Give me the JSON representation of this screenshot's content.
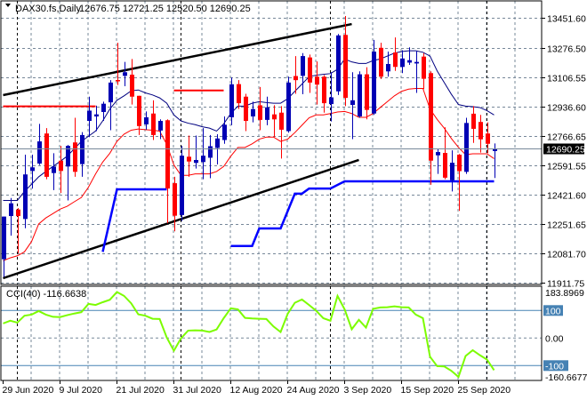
{
  "header": {
    "symbol": "DAX30.fs,Daily",
    "ohlc_text": "12676.75 12721.25 12520.50 12690.25"
  },
  "cci_panel": {
    "label": "CCI(40) -116.6638"
  },
  "colors": {
    "up_candle": "#0000b4",
    "down_candle": "#ff0000",
    "upper_band": "#000080",
    "lower_band": "#ff0000",
    "trailing_stop": "#0000ff",
    "channel": "#000000",
    "resistance": "#ff0000",
    "cci_line": "#7cfc00",
    "cci_levels": "#4682b4",
    "grid": "#778899"
  },
  "chart_data": [
    {
      "type": "candlestick",
      "title": "DAX30.fs,Daily",
      "ylim": [
        11911.75,
        13451.6
      ],
      "price_ticks": [
        "13451.60",
        "13276.50",
        "13106.55",
        "12936.60",
        "12766.65",
        "12591.55",
        "12421.60",
        "12251.65",
        "12081.70",
        "11911.75"
      ],
      "price_tick_values": [
        13451.6,
        13276.5,
        13106.55,
        12936.6,
        12766.65,
        12591.55,
        12421.6,
        12251.65,
        12081.7,
        11911.75
      ],
      "current_price": "12690.25",
      "current_price_value": 12690.25,
      "date_labels": [
        {
          "bar": 0,
          "text": "29 Jun 2020"
        },
        {
          "bar": 8,
          "text": "9 Jul 2020"
        },
        {
          "bar": 16,
          "text": "21 Jul 2020"
        },
        {
          "bar": 24,
          "text": "31 Jul 2020"
        },
        {
          "bar": 32,
          "text": "12 Aug 2020"
        },
        {
          "bar": 40,
          "text": "24 Aug 2020"
        },
        {
          "bar": 48,
          "text": "3 Sep 2020"
        },
        {
          "bar": 56,
          "text": "15 Sep 2020"
        },
        {
          "bar": 64,
          "text": "25 Sep 2020"
        }
      ],
      "period_separators": [
        2,
        25,
        46,
        68
      ],
      "ohlc": [
        [
          12048,
          12296,
          11945,
          12296
        ],
        [
          12299,
          12404,
          12185,
          12373
        ],
        [
          12337,
          12345,
          12082,
          12299
        ],
        [
          12282,
          12656,
          12228,
          12541
        ],
        [
          12561,
          12656,
          12459,
          12582
        ],
        [
          12604,
          12835,
          12596,
          12733
        ],
        [
          12779,
          12810,
          12513,
          12527
        ],
        [
          12549,
          12664,
          12450,
          12587
        ],
        [
          12621,
          12707,
          12433,
          12561
        ],
        [
          12587,
          12712,
          12390,
          12707
        ],
        [
          12727,
          12870,
          12527,
          12556
        ],
        [
          12601,
          12787,
          12527,
          12770
        ],
        [
          12852,
          12993,
          12758,
          12912
        ],
        [
          12878,
          12941,
          12793,
          12890
        ],
        [
          12904,
          12964,
          12852,
          12952
        ],
        [
          12960,
          13089,
          12798,
          13075
        ],
        [
          13090,
          13306,
          13061,
          13082
        ],
        [
          13114,
          13195,
          13054,
          13135
        ],
        [
          13121,
          13212,
          12947,
          12993
        ],
        [
          12998,
          12998,
          12770,
          12822
        ],
        [
          12832,
          12907,
          12801,
          12873
        ],
        [
          12895,
          12972,
          12741,
          12770
        ],
        [
          12796,
          12861,
          12746,
          12852
        ],
        [
          12856,
          12861,
          12257,
          12459
        ],
        [
          12490,
          12527,
          12210,
          12301
        ],
        [
          12305,
          12707,
          12270,
          12650
        ],
        [
          12644,
          12767,
          12527,
          12616
        ],
        [
          12608,
          12767,
          12575,
          12625
        ],
        [
          12613,
          12810,
          12513,
          12650
        ],
        [
          12638,
          12770,
          12519,
          12705
        ],
        [
          12695,
          12775,
          12599,
          12750
        ],
        [
          12741,
          12878,
          12719,
          12830
        ],
        [
          12873,
          13104,
          12827,
          13065
        ],
        [
          13066,
          13089,
          12921,
          12955
        ],
        [
          12993,
          13010,
          12793,
          12852
        ],
        [
          12878,
          12964,
          12844,
          12921
        ],
        [
          12943,
          13049,
          12798,
          12858
        ],
        [
          12858,
          12993,
          12827,
          12931
        ],
        [
          12890,
          12943,
          12758,
          12861
        ],
        [
          12900,
          12938,
          12633,
          12801
        ],
        [
          12793,
          13109,
          12784,
          13075
        ],
        [
          13113,
          13229,
          13010,
          13089
        ],
        [
          13114,
          13246,
          13007,
          13229
        ],
        [
          13221,
          13238,
          13015,
          13075
        ],
        [
          13109,
          13198,
          12947,
          13063
        ],
        [
          13109,
          13118,
          12900,
          12955
        ],
        [
          12950,
          13135,
          12849,
          12989
        ],
        [
          13024,
          13357,
          13003,
          13349
        ],
        [
          13352,
          13462,
          12938,
          12986
        ],
        [
          12945,
          13135,
          12746,
          12972
        ],
        [
          12878,
          13140,
          12870,
          13123
        ],
        [
          13123,
          13164,
          12861,
          12916
        ],
        [
          12895,
          13323,
          12887,
          13255
        ],
        [
          13277,
          13306,
          13096,
          13109
        ],
        [
          13140,
          13255,
          13109,
          13183
        ],
        [
          13250,
          13337,
          13143,
          13166
        ],
        [
          13166,
          13263,
          13130,
          13215
        ],
        [
          13191,
          13280,
          13178,
          13205
        ],
        [
          13186,
          13260,
          13015,
          13195
        ],
        [
          13226,
          13246,
          13037,
          13097
        ],
        [
          13130,
          13140,
          12481,
          12621
        ],
        [
          12652,
          12688,
          12544,
          12671
        ],
        [
          12666,
          12815,
          12513,
          12522
        ],
        [
          12507,
          12681,
          12442,
          12609
        ],
        [
          12656,
          12660,
          12329,
          12560
        ],
        [
          12556,
          12870,
          12544,
          12840
        ],
        [
          12894,
          12938,
          12724,
          12806
        ],
        [
          12846,
          12887,
          12668,
          12745
        ],
        [
          12779,
          12844,
          12664,
          12719
        ],
        [
          12676.75,
          12721.25,
          12520.5,
          12690.25
        ]
      ],
      "upper_band": [
        12390,
        12390,
        12390,
        12442,
        12484,
        12527,
        12558,
        12587,
        12616,
        12647,
        12690,
        12733,
        12763,
        12793,
        12852,
        12921,
        12972,
        12998,
        13027,
        13032,
        13015,
        13003,
        12986,
        12955,
        12887,
        12852,
        12839,
        12830,
        12818,
        12810,
        12793,
        12835,
        12895,
        12938,
        12938,
        12955,
        12964,
        12959,
        12955,
        12955,
        12981,
        13024,
        13066,
        13109,
        13118,
        13123,
        13127,
        13152,
        13212,
        13195,
        13186,
        13186,
        13203,
        13212,
        13229,
        13246,
        13255,
        13260,
        13260,
        13251,
        13229,
        13143,
        13075,
        13007,
        12947,
        12938,
        12935,
        12930,
        12912,
        12887
      ],
      "lower_band": [
        12039,
        12056,
        12068,
        12091,
        12151,
        12253,
        12288,
        12313,
        12339,
        12356,
        12382,
        12407,
        12467,
        12544,
        12613,
        12664,
        12733,
        12775,
        12798,
        12805,
        12801,
        12798,
        12793,
        12716,
        12596,
        12536,
        12536,
        12544,
        12544,
        12544,
        12558,
        12587,
        12647,
        12698,
        12698,
        12719,
        12746,
        12758,
        12758,
        12733,
        12746,
        12784,
        12827,
        12870,
        12887,
        12887,
        12895,
        12904,
        12907,
        12895,
        12873,
        12873,
        12895,
        12930,
        12964,
        12998,
        13024,
        13037,
        13041,
        13041,
        12921,
        12861,
        12810,
        12750,
        12698,
        12656,
        12661,
        12661,
        12661,
        12633
      ],
      "trailing_stop_segments": [
        [
          [
            14,
            12091
          ],
          [
            16,
            12454
          ],
          [
            23,
            12454
          ]
        ],
        [
          [
            32,
            12125
          ],
          [
            35,
            12125
          ],
          [
            36,
            12227
          ],
          [
            39,
            12227
          ],
          [
            41,
            12429
          ],
          [
            42,
            12429
          ],
          [
            43,
            12459
          ],
          [
            46,
            12459
          ],
          [
            48,
            12501
          ],
          [
            69,
            12501
          ]
        ]
      ],
      "resistance_lines": [
        [
          [
            0,
            12936.6
          ],
          [
            13,
            12936.6
          ]
        ],
        [
          [
            24,
            13029
          ],
          [
            31,
            13029
          ]
        ]
      ],
      "channel_lines": [
        [
          [
            0,
            13002
          ],
          [
            49,
            13415
          ]
        ],
        [
          [
            0,
            11938
          ],
          [
            50,
            12625
          ]
        ]
      ]
    },
    {
      "type": "line",
      "title": "CCI(40)",
      "ylim": [
        -160.6677,
        183.8969
      ],
      "ticks": [
        {
          "value": 183.8969,
          "text": "183.8969",
          "boxed": false
        },
        {
          "value": 100,
          "text": "100",
          "boxed": true
        },
        {
          "value": 0,
          "text": "0.00",
          "boxed": false
        },
        {
          "value": -100,
          "text": "-100",
          "boxed": true
        },
        {
          "value": -160.6677,
          "text": "-160.6677",
          "boxed": false
        }
      ],
      "levels": [
        100,
        -100
      ],
      "values": [
        53,
        63,
        56,
        81,
        85,
        98,
        85,
        77,
        76,
        83,
        89,
        94,
        124,
        120,
        130,
        139,
        167,
        153,
        126,
        86,
        81,
        70,
        69,
        2,
        -46,
        -1,
        27,
        28,
        27,
        22,
        31,
        72,
        108,
        104,
        73,
        71,
        70,
        69,
        42,
        22,
        88,
        128,
        140,
        120,
        99,
        72,
        63,
        153,
        104,
        32,
        66,
        38,
        106,
        111,
        112,
        115,
        112,
        111,
        85,
        72,
        -68,
        -102,
        -103,
        -119,
        -141,
        -65,
        -44,
        -62,
        -78,
        -116.66
      ]
    }
  ]
}
